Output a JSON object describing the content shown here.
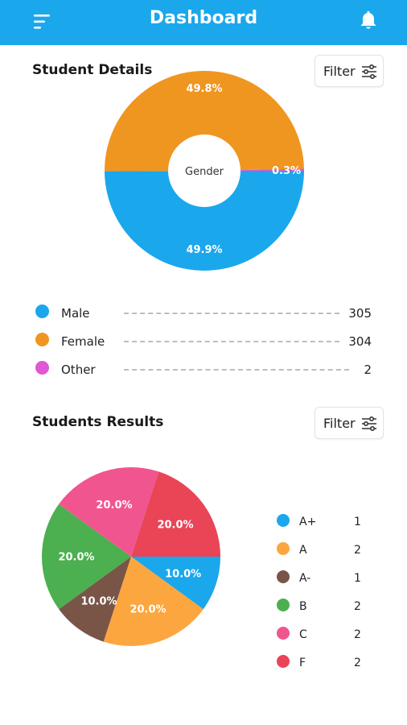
{
  "appbar": {
    "title": "Dashboard",
    "menu_icon": "menu-icon",
    "bell_icon": "notification-bell-icon"
  },
  "student_details": {
    "title": "Student Details",
    "filter_label": "Filter",
    "center_label": "Gender"
  },
  "gender_legend": [
    {
      "label": "Male",
      "count": "305",
      "color": "#1aa7ec"
    },
    {
      "label": "Female",
      "count": "304",
      "color": "#ef9621"
    },
    {
      "label": "Other",
      "count": "2",
      "color": "#e057d6"
    }
  ],
  "students_results": {
    "title": "Students Results",
    "filter_label": "Filter"
  },
  "results_legend": [
    {
      "label": "A+",
      "count": "1",
      "color": "#1aa7ec"
    },
    {
      "label": "A",
      "count": "2",
      "color": "#fca63f"
    },
    {
      "label": "A-",
      "count": "1",
      "color": "#795548"
    },
    {
      "label": "B",
      "count": "2",
      "color": "#4caf50"
    },
    {
      "label": "C",
      "count": "2",
      "color": "#f0558f"
    },
    {
      "label": "F",
      "count": "2",
      "color": "#ea4457"
    }
  ],
  "chart_data": [
    {
      "type": "pie",
      "variant": "donut",
      "title": "Student Details",
      "center_label": "Gender",
      "categories": [
        "Male",
        "Female",
        "Other"
      ],
      "values": [
        305,
        304,
        2
      ],
      "labels": [
        "49.9%",
        "49.8%",
        "0.3%"
      ],
      "colors": [
        "#1aa7ec",
        "#ef9621",
        "#e057d6"
      ]
    },
    {
      "type": "pie",
      "title": "Students Results",
      "categories": [
        "A+",
        "A",
        "A-",
        "B",
        "C",
        "F"
      ],
      "values": [
        1,
        2,
        1,
        2,
        2,
        2
      ],
      "labels": [
        "10.0%",
        "20.0%",
        "10.0%",
        "20.0%",
        "20.0%",
        "20.0%"
      ],
      "colors": [
        "#1aa7ec",
        "#fca63f",
        "#795548",
        "#4caf50",
        "#f0558f",
        "#ea4457"
      ]
    }
  ]
}
